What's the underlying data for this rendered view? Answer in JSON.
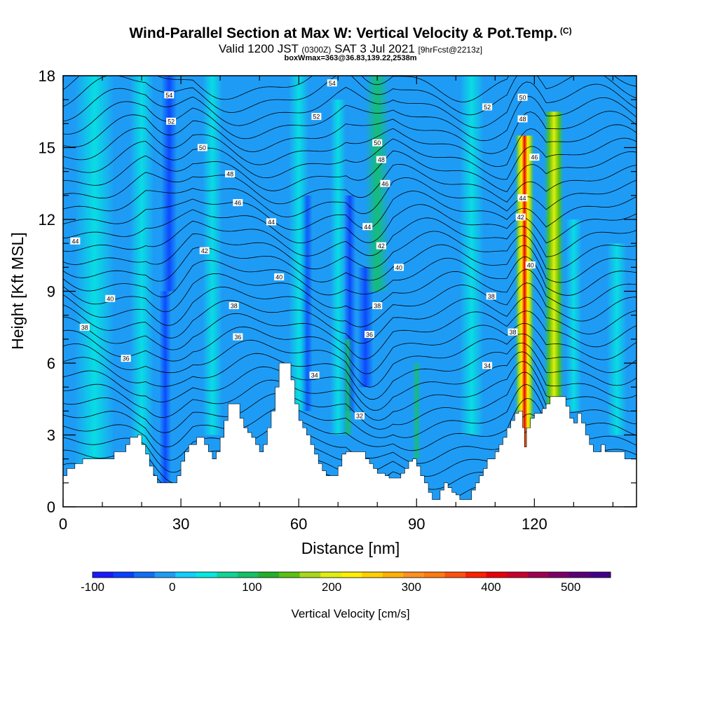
{
  "header": {
    "title": "Wind-Parallel Section at Max W: Vertical Velocity & Pot.Temp.",
    "title_mark": "(C)",
    "valid_prefix": "Valid 1200 JST",
    "valid_zulu": "(0300Z)",
    "valid_date": "SAT 3 Jul 2021",
    "forecast_tag": "[9hrFcst@2213z]",
    "box_info": "boxWmax=363@36.83,139.22,2538m"
  },
  "chart_data": {
    "type": "heatmap",
    "xlabel": "Distance [nm]",
    "ylabel": "Height [Kft MSL]",
    "xlim": [
      0,
      146
    ],
    "ylim": [
      0,
      18
    ],
    "x_ticks": [
      "0",
      "30",
      "60",
      "90",
      "120"
    ],
    "x_tick_values": [
      0,
      30,
      60,
      90,
      120
    ],
    "y_ticks": [
      "0",
      "3",
      "6",
      "9",
      "12",
      "15",
      "18"
    ],
    "y_tick_values": [
      0,
      3,
      6,
      9,
      12,
      15,
      18
    ],
    "colorbar": {
      "label": "Vertical Velocity [cm/s]",
      "min": -100,
      "step": 25,
      "max": 550,
      "tick_labels": [
        "-100",
        "0",
        "100",
        "200",
        "300",
        "400",
        "500"
      ],
      "tick_values": [
        -100,
        0,
        100,
        200,
        300,
        400,
        500
      ],
      "colors": [
        "#1a1aff",
        "#0a40ff",
        "#0f6ef5",
        "#1e9cf5",
        "#10cfff",
        "#05e8e0",
        "#10d49a",
        "#14c266",
        "#22b02a",
        "#5cc012",
        "#a8d818",
        "#e0ee10",
        "#ffee00",
        "#ffd000",
        "#ffb000",
        "#ff9020",
        "#ff7a10",
        "#ff5010",
        "#ff2000",
        "#e8000a",
        "#c80030",
        "#a00050",
        "#7c0068",
        "#5a0078",
        "#440088"
      ]
    },
    "theta_contour_labels": [
      {
        "text": "54",
        "x": 27,
        "y": 17.2
      },
      {
        "text": "52",
        "x": 27.5,
        "y": 16.1
      },
      {
        "text": "50",
        "x": 35.5,
        "y": 15.0
      },
      {
        "text": "48",
        "x": 42.5,
        "y": 13.9
      },
      {
        "text": "46",
        "x": 44.5,
        "y": 12.7
      },
      {
        "text": "44",
        "x": 53,
        "y": 11.9
      },
      {
        "text": "44",
        "x": 3.1,
        "y": 11.1
      },
      {
        "text": "42",
        "x": 36,
        "y": 10.7
      },
      {
        "text": "40",
        "x": 55,
        "y": 9.6
      },
      {
        "text": "40",
        "x": 12,
        "y": 8.7
      },
      {
        "text": "38",
        "x": 43.5,
        "y": 8.4
      },
      {
        "text": "38",
        "x": 5.5,
        "y": 7.5
      },
      {
        "text": "36",
        "x": 44.5,
        "y": 7.1
      },
      {
        "text": "36",
        "x": 16,
        "y": 6.2
      },
      {
        "text": "34",
        "x": 64,
        "y": 5.5
      },
      {
        "text": "32",
        "x": 75.5,
        "y": 3.8
      },
      {
        "text": "54",
        "x": 68.5,
        "y": 17.7
      },
      {
        "text": "52",
        "x": 64.5,
        "y": 16.3
      },
      {
        "text": "50",
        "x": 80,
        "y": 15.2
      },
      {
        "text": "48",
        "x": 81,
        "y": 14.5
      },
      {
        "text": "46",
        "x": 82,
        "y": 13.5
      },
      {
        "text": "44",
        "x": 77.5,
        "y": 11.7
      },
      {
        "text": "42",
        "x": 81,
        "y": 10.9
      },
      {
        "text": "40",
        "x": 85.5,
        "y": 10.0
      },
      {
        "text": "38",
        "x": 80,
        "y": 8.4
      },
      {
        "text": "36",
        "x": 78,
        "y": 7.2
      },
      {
        "text": "52",
        "x": 108,
        "y": 16.7
      },
      {
        "text": "50",
        "x": 117,
        "y": 17.1
      },
      {
        "text": "48",
        "x": 117,
        "y": 16.2
      },
      {
        "text": "46",
        "x": 120,
        "y": 14.6
      },
      {
        "text": "44",
        "x": 117,
        "y": 12.9
      },
      {
        "text": "42",
        "x": 116.5,
        "y": 12.1
      },
      {
        "text": "40",
        "x": 119,
        "y": 10.1
      },
      {
        "text": "38",
        "x": 109,
        "y": 8.8
      },
      {
        "text": "38",
        "x": 114.5,
        "y": 7.3
      },
      {
        "text": "34",
        "x": 108,
        "y": 5.9
      }
    ]
  }
}
